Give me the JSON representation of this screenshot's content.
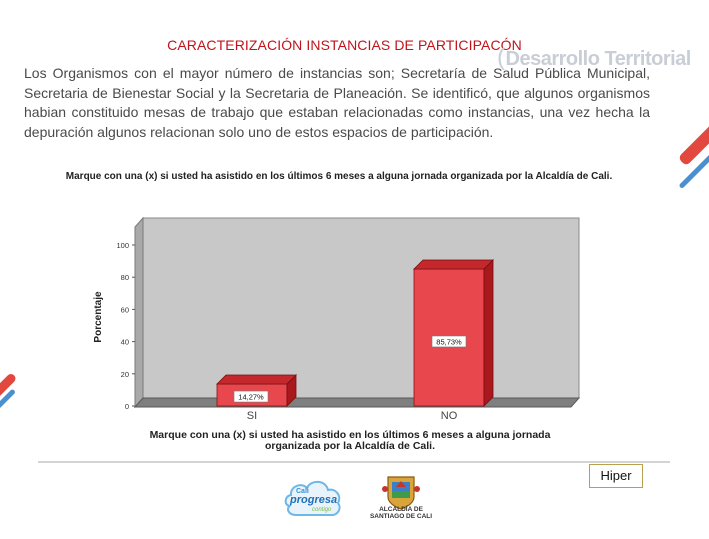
{
  "slide": {
    "title": "CARACTERIZACIÓN INSTANCIAS DE PARTICIPACÓN",
    "watermark": "Desarrollo Territorial",
    "paragraph": "Los Organismos con el mayor número de instancias son; Secretaría de Salud Pública Municipal, Secretaria de Bienestar Social y la Secretaria de Planeación. Se identificó, que algunos organismos habian constituido mesas de trabajo que estaban relacionadas como instancias, una vez hecha la depuración algunos relacionan solo uno de estos espacios de participación."
  },
  "chart_data": {
    "type": "bar",
    "title_top": "Marque con una (x) si usted ha asistido en los últimos 6 meses a alguna jornada organizada  por  la Alcaldía de Cali.",
    "title_bottom": "Marque con una (x) si usted ha asistido en los últimos 6 meses a alguna jornada organizada  por  la Alcaldía de Cali.",
    "ylabel": "Porcentaje",
    "categories": [
      "SI",
      "NO"
    ],
    "values": [
      14.27,
      85.73
    ],
    "data_labels": [
      "14,27%",
      "85,73%"
    ],
    "yticks": [
      "0",
      "20",
      "40",
      "60",
      "80",
      "100"
    ],
    "ylim": [
      0,
      100
    ],
    "grid": false,
    "colors": {
      "bar_front": "#e8484d",
      "bar_side": "#a8181c",
      "bar_top": "#c4282d",
      "wall": "#c8c8c8",
      "floor": "#7f7f7f"
    }
  },
  "footer": {
    "hiper_label": "Hiper",
    "logo_cali_line1": "Cali",
    "logo_cali_line2": "progresa",
    "logo_cali_line3": "contigo",
    "logo_alcaldia_line1": "ALCALDÍA DE",
    "logo_alcaldia_line2": "SANTIAGO DE CALI"
  }
}
